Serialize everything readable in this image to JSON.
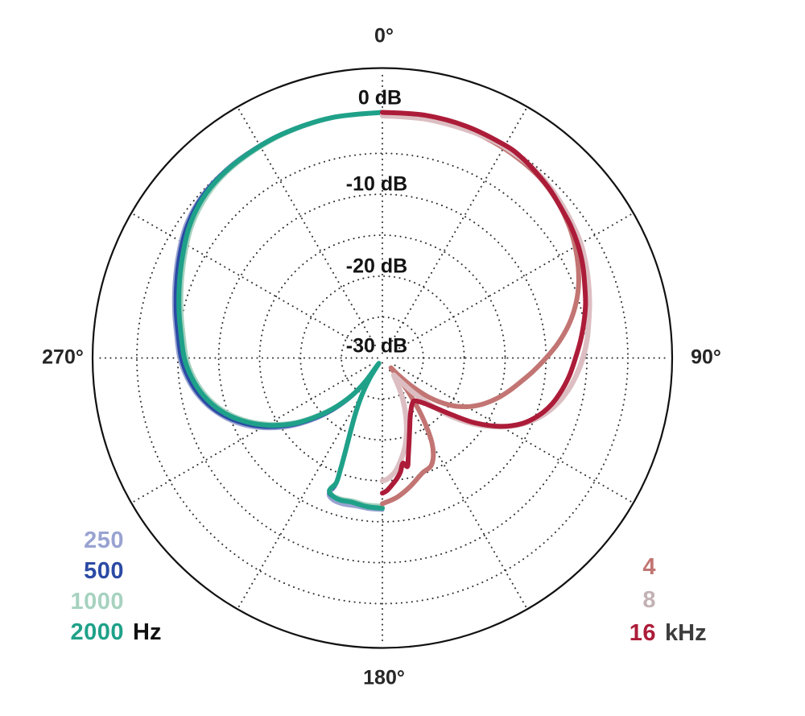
{
  "chart_data": {
    "type": "line",
    "polar": true,
    "description": "Microphone polar pattern, normalized level vs angle",
    "angle_labels": [
      {
        "angle_deg": 0,
        "label": "0°"
      },
      {
        "angle_deg": 90,
        "label": "90°"
      },
      {
        "angle_deg": 180,
        "label": "180°"
      },
      {
        "angle_deg": 270,
        "label": "270°"
      }
    ],
    "radial_axis": {
      "unit": "dB",
      "max_db": 0,
      "min_db": -30,
      "ring_step_db": 5,
      "labels": [
        {
          "db": 0,
          "text": "0 dB"
        },
        {
          "db": -10,
          "text": "-10 dB"
        },
        {
          "db": -20,
          "text": "-20 dB"
        },
        {
          "db": -30,
          "text": "-30 dB"
        }
      ]
    },
    "grid": {
      "ring_dbs": [
        0,
        -5,
        -10,
        -15,
        -20,
        -25
      ],
      "radial_line_step_deg": 30,
      "dot_color": "#2e2e2e",
      "outer_circle_color": "#111111"
    },
    "left_unit": "Hz",
    "right_unit": "kHz",
    "left_unit_color": "#111111",
    "right_unit_color": "#3d3d3d",
    "series": [
      {
        "name": "250",
        "frequency": "250 Hz",
        "side": "left",
        "color": "#99a3d1",
        "points": [
          [
            360,
            0
          ],
          [
            348,
            0
          ],
          [
            336,
            0
          ],
          [
            326,
            -0.05
          ],
          [
            318,
            -0.15
          ],
          [
            311,
            -0.4
          ],
          [
            304,
            -1.0
          ],
          [
            297,
            -2.0
          ],
          [
            290,
            -3.0
          ],
          [
            283,
            -3.9
          ],
          [
            277,
            -4.6
          ],
          [
            270,
            -5.2
          ],
          [
            264,
            -6.0
          ],
          [
            258,
            -7.1
          ],
          [
            252,
            -8.6
          ],
          [
            246,
            -10.5
          ],
          [
            240,
            -12.9
          ],
          [
            234,
            -15.7
          ],
          [
            229,
            -18.3
          ],
          [
            224,
            -21.0
          ],
          [
            219,
            -23.8
          ],
          [
            216,
            -26.0
          ],
          [
            213.8,
            -29.2
          ],
          [
            212,
            -27.0
          ],
          [
            209,
            -24.6
          ],
          [
            206,
            -22.3
          ],
          [
            203.4,
            -19.9
          ],
          [
            201.6,
            -17.4
          ],
          [
            200.6,
            -15.0
          ],
          [
            200.3,
            -13.3
          ],
          [
            201.5,
            -12.1
          ],
          [
            199,
            -11.6
          ],
          [
            195,
            -11.5
          ],
          [
            190,
            -11.6
          ],
          [
            185,
            -11.5
          ],
          [
            180,
            -11.45
          ]
        ]
      },
      {
        "name": "500",
        "frequency": "500 Hz",
        "side": "left",
        "color": "#2b4aa5",
        "points": [
          [
            360,
            0
          ],
          [
            348,
            0
          ],
          [
            336,
            0
          ],
          [
            326,
            -0.1
          ],
          [
            318,
            -0.2
          ],
          [
            311,
            -0.5
          ],
          [
            304,
            -1.2
          ],
          [
            297,
            -2.2
          ],
          [
            290,
            -3.2
          ],
          [
            283,
            -4.1
          ],
          [
            277,
            -4.8
          ],
          [
            270,
            -5.4
          ],
          [
            264,
            -6.2
          ],
          [
            258,
            -7.3
          ],
          [
            252,
            -8.8
          ],
          [
            246,
            -10.8
          ],
          [
            240,
            -13.2
          ],
          [
            234,
            -16.0
          ],
          [
            229,
            -18.6
          ],
          [
            224,
            -21.2
          ],
          [
            219,
            -24.0
          ],
          [
            216,
            -26.2
          ],
          [
            213.8,
            -29.2
          ],
          [
            212,
            -27.1
          ],
          [
            209,
            -24.7
          ],
          [
            206,
            -22.4
          ],
          [
            203.4,
            -20.0
          ],
          [
            201.6,
            -17.5
          ],
          [
            200.6,
            -15.2
          ],
          [
            200.3,
            -13.5
          ],
          [
            201.7,
            -12.4
          ],
          [
            199.5,
            -12.0
          ],
          [
            196,
            -11.9
          ],
          [
            191,
            -12.0
          ],
          [
            186,
            -11.9
          ],
          [
            180,
            -11.85
          ]
        ]
      },
      {
        "name": "1000",
        "frequency": "1000 Hz",
        "side": "left",
        "color": "#a6d2bf",
        "points": [
          [
            360,
            0
          ],
          [
            348,
            -0.05
          ],
          [
            336,
            -0.15
          ],
          [
            326,
            -0.3
          ],
          [
            318,
            -0.5
          ],
          [
            311,
            -1.0
          ],
          [
            304,
            -1.8
          ],
          [
            297,
            -2.9
          ],
          [
            290,
            -3.9
          ],
          [
            283,
            -4.8
          ],
          [
            277,
            -5.5
          ],
          [
            270,
            -6.1
          ],
          [
            264,
            -6.9
          ],
          [
            258,
            -8.0
          ],
          [
            252,
            -9.5
          ],
          [
            246,
            -11.5
          ],
          [
            240,
            -13.9
          ],
          [
            234,
            -16.6
          ],
          [
            229,
            -19.2
          ],
          [
            224,
            -21.8
          ],
          [
            219,
            -24.5
          ],
          [
            216,
            -26.7
          ],
          [
            213.8,
            -29.3
          ],
          [
            212,
            -27.4
          ],
          [
            209,
            -25.1
          ],
          [
            206,
            -22.8
          ],
          [
            203.4,
            -20.4
          ],
          [
            201.6,
            -17.9
          ],
          [
            200.6,
            -15.6
          ],
          [
            200.3,
            -13.9
          ],
          [
            201.8,
            -12.9
          ],
          [
            200,
            -12.2
          ],
          [
            196.5,
            -12.1
          ],
          [
            191.5,
            -12.2
          ],
          [
            186,
            -12.0
          ],
          [
            180,
            -11.95
          ]
        ]
      },
      {
        "name": "2000",
        "frequency": "2000 Hz",
        "side": "left",
        "color": "#1fa189",
        "points": [
          [
            360,
            0
          ],
          [
            348,
            0
          ],
          [
            336,
            -0.05
          ],
          [
            326,
            -0.15
          ],
          [
            318,
            -0.3
          ],
          [
            311,
            -0.7
          ],
          [
            304,
            -1.5
          ],
          [
            297,
            -2.6
          ],
          [
            290,
            -3.6
          ],
          [
            283,
            -4.5
          ],
          [
            277,
            -5.2
          ],
          [
            270,
            -5.8
          ],
          [
            264,
            -6.6
          ],
          [
            258,
            -7.7
          ],
          [
            252,
            -9.2
          ],
          [
            246,
            -11.2
          ],
          [
            240,
            -13.6
          ],
          [
            234,
            -16.3
          ],
          [
            229,
            -18.9
          ],
          [
            224,
            -21.5
          ],
          [
            219,
            -24.2
          ],
          [
            216,
            -26.4
          ],
          [
            213.8,
            -29.2
          ],
          [
            212,
            -27.2
          ],
          [
            209,
            -24.9
          ],
          [
            206,
            -22.6
          ],
          [
            203.4,
            -20.2
          ],
          [
            201.6,
            -17.7
          ],
          [
            200.6,
            -15.4
          ],
          [
            200.3,
            -13.7
          ],
          [
            201.8,
            -12.6
          ],
          [
            200,
            -12.1
          ],
          [
            196.5,
            -11.9
          ],
          [
            192,
            -12.0
          ],
          [
            186,
            -11.75
          ],
          [
            180,
            -11.65
          ]
        ]
      },
      {
        "name": "4",
        "frequency": "4 kHz",
        "side": "right",
        "color": "#c27573",
        "points": [
          [
            0,
            -0.2
          ],
          [
            10,
            -0.15
          ],
          [
            20,
            -0.2
          ],
          [
            30,
            -0.4
          ],
          [
            40,
            -0.7
          ],
          [
            48,
            -1.3
          ],
          [
            55,
            -2.1
          ],
          [
            60,
            -2.8
          ],
          [
            65,
            -3.6
          ],
          [
            70,
            -4.5
          ],
          [
            75,
            -5.6
          ],
          [
            80,
            -6.9
          ],
          [
            85,
            -8.4
          ],
          [
            90,
            -10.0
          ],
          [
            95,
            -11.5
          ],
          [
            100,
            -12.9
          ],
          [
            105,
            -14.1
          ],
          [
            110,
            -15.3
          ],
          [
            115,
            -16.6
          ],
          [
            120,
            -18.1
          ],
          [
            125,
            -20.0
          ],
          [
            130,
            -22.5
          ],
          [
            134,
            -25.2
          ],
          [
            137,
            -27.3
          ],
          [
            139,
            -28.4
          ],
          [
            141,
            -26.8
          ],
          [
            143,
            -24.3
          ],
          [
            146,
            -21.2
          ],
          [
            150,
            -17.8
          ],
          [
            155,
            -15.7
          ],
          [
            161,
            -15.1
          ],
          [
            168,
            -13.9
          ],
          [
            174,
            -12.9
          ],
          [
            180,
            -12.2
          ]
        ]
      },
      {
        "name": "8",
        "frequency": "8 kHz",
        "side": "right",
        "color": "#dcbec2",
        "legend_color": "#c3b2b5",
        "points": [
          [
            0,
            -0.4
          ],
          [
            10,
            -0.35
          ],
          [
            20,
            -0.3
          ],
          [
            28,
            -0.2
          ],
          [
            35,
            -0.3
          ],
          [
            40,
            -0.5
          ],
          [
            45,
            -0.8
          ],
          [
            50,
            -1.2
          ],
          [
            55,
            -1.6
          ],
          [
            60,
            -2.0
          ],
          [
            65,
            -2.6
          ],
          [
            70,
            -3.2
          ],
          [
            75,
            -3.8
          ],
          [
            80,
            -4.4
          ],
          [
            85,
            -4.9
          ],
          [
            90,
            -5.5
          ],
          [
            95,
            -6.2
          ],
          [
            100,
            -7.0
          ],
          [
            105,
            -8.0
          ],
          [
            110,
            -9.3
          ],
          [
            115,
            -11.0
          ],
          [
            120,
            -13.2
          ],
          [
            125,
            -15.8
          ],
          [
            130,
            -18.8
          ],
          [
            134,
            -21.6
          ],
          [
            138,
            -24.2
          ],
          [
            142,
            -26.3
          ],
          [
            145,
            -27.3
          ],
          [
            147,
            -27.4
          ],
          [
            150,
            -26.2
          ],
          [
            153,
            -24.7
          ],
          [
            157,
            -22.8
          ],
          [
            161,
            -20.9
          ],
          [
            165,
            -19.1
          ],
          [
            169,
            -17.6
          ],
          [
            173,
            -16.2
          ],
          [
            177,
            -15.3
          ],
          [
            180,
            -15.0
          ]
        ]
      },
      {
        "name": "16",
        "frequency": "16 kHz",
        "side": "right",
        "color": "#ac1c39",
        "points": [
          [
            0,
            0
          ],
          [
            10,
            0.1
          ],
          [
            20,
            0.1
          ],
          [
            30,
            0
          ],
          [
            35,
            -0.2
          ],
          [
            40,
            -0.6
          ],
          [
            45,
            -1.0
          ],
          [
            50,
            -1.5
          ],
          [
            55,
            -1.9
          ],
          [
            60,
            -2.4
          ],
          [
            65,
            -3.0
          ],
          [
            70,
            -3.7
          ],
          [
            75,
            -4.3
          ],
          [
            80,
            -5.0
          ],
          [
            85,
            -5.7
          ],
          [
            90,
            -6.4
          ],
          [
            95,
            -7.0
          ],
          [
            100,
            -7.7
          ],
          [
            105,
            -8.5
          ],
          [
            110,
            -9.6
          ],
          [
            115,
            -11.1
          ],
          [
            120,
            -13.3
          ],
          [
            125,
            -16.2
          ],
          [
            129,
            -18.9
          ],
          [
            133,
            -21.0
          ],
          [
            137,
            -22.4
          ],
          [
            141,
            -23.2
          ],
          [
            144,
            -23.5
          ],
          [
            148,
            -23.2
          ],
          [
            152,
            -22.6
          ],
          [
            156,
            -21.7
          ],
          [
            160,
            -20.3
          ],
          [
            163,
            -18.9
          ],
          [
            165.5,
            -17.4
          ],
          [
            167,
            -16.4
          ],
          [
            169,
            -16.9
          ],
          [
            171,
            -15.9
          ],
          [
            173,
            -15.2
          ],
          [
            175.5,
            -14.5
          ],
          [
            178,
            -13.8
          ],
          [
            180,
            -13.5
          ]
        ]
      }
    ]
  }
}
